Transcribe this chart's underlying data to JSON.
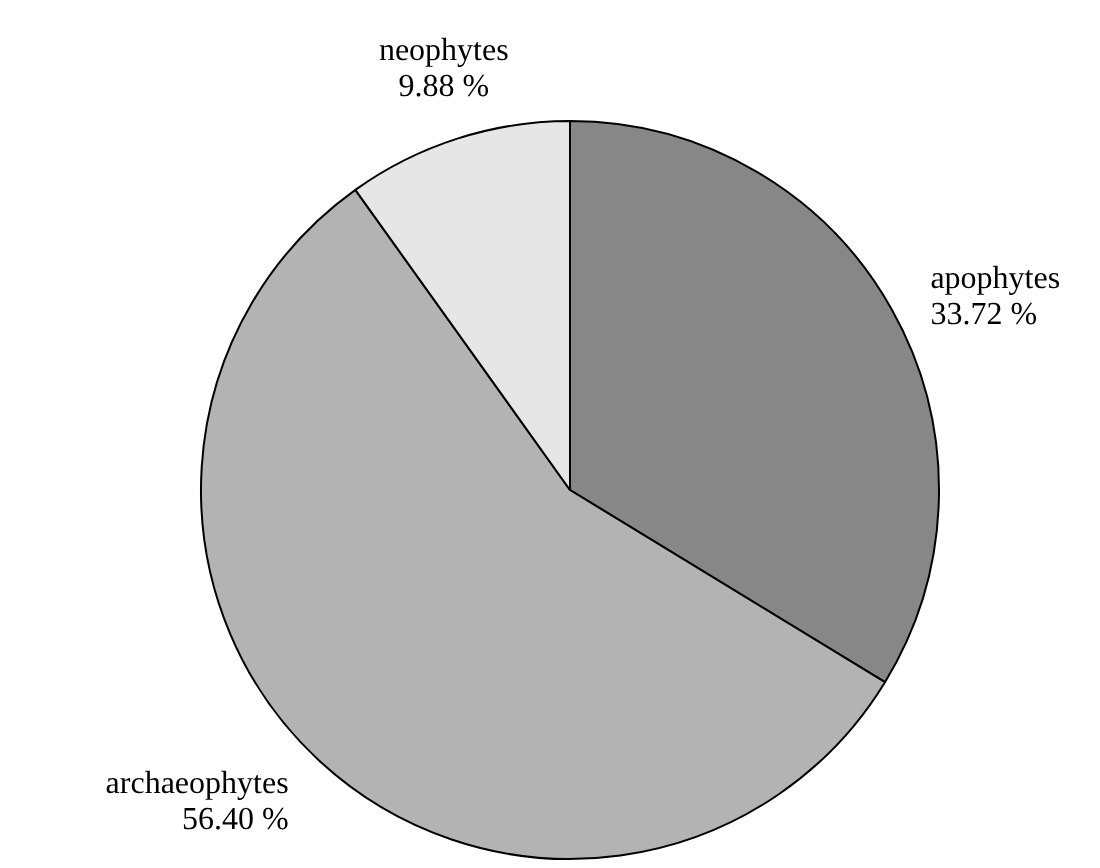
{
  "chart_data": {
    "type": "pie",
    "categories": [
      "apophytes",
      "archaeophytes",
      "neophytes"
    ],
    "values": [
      33.72,
      56.4,
      9.88
    ],
    "colors": [
      "#878787",
      "#b3b3b3",
      "#e6e6e6"
    ],
    "value_labels": [
      "33.72 %",
      "56.40 %",
      "9.88 %"
    ],
    "legend": false
  }
}
